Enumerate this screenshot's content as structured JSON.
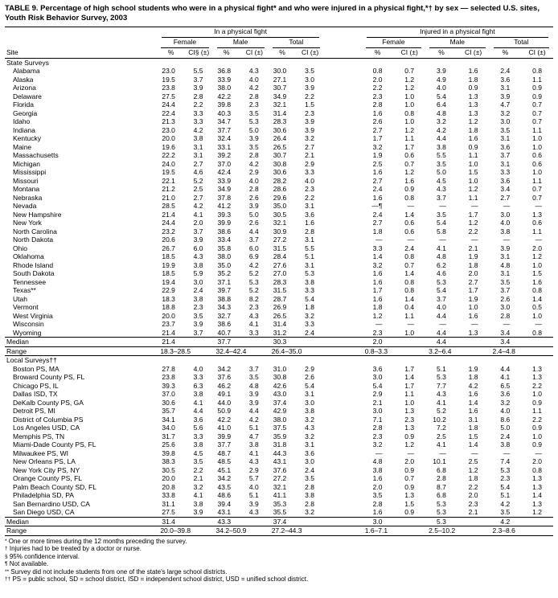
{
  "title": "TABLE 9. Percentage of high school students who were in a physical fight* and who were injured in a physical fight,*† by sex — selected U.S. sites, Youth Risk Behavior Survey, 2003",
  "header": {
    "site_label": "Site",
    "groups": [
      {
        "label": "In a physical fight"
      },
      {
        "label": "Injured in a physical fight"
      }
    ],
    "subgroups": [
      "Female",
      "Male",
      "Total"
    ],
    "pct_label": "%",
    "ci_label_first": "CI§ (±)",
    "ci_label": "CI (±)"
  },
  "sections": [
    {
      "label": "State Surveys",
      "rows": [
        {
          "site": "Alabama",
          "values": [
            "23.0",
            "5.5",
            "36.8",
            "4.3",
            "30.0",
            "3.5",
            "0.8",
            "0.7",
            "3.9",
            "1.6",
            "2.4",
            "0.8"
          ]
        },
        {
          "site": "Alaska",
          "values": [
            "19.5",
            "3.7",
            "33.9",
            "4.0",
            "27.1",
            "3.0",
            "2.0",
            "1.2",
            "4.9",
            "1.8",
            "3.6",
            "1.1"
          ]
        },
        {
          "site": "Arizona",
          "values": [
            "23.8",
            "3.9",
            "38.0",
            "4.2",
            "30.7",
            "3.9",
            "2.2",
            "1.2",
            "4.0",
            "0.9",
            "3.1",
            "0.9"
          ]
        },
        {
          "site": "Delaware",
          "values": [
            "27.5",
            "2.8",
            "42.2",
            "2.8",
            "34.9",
            "2.2",
            "2.3",
            "1.0",
            "5.4",
            "1.3",
            "3.9",
            "0.9"
          ]
        },
        {
          "site": "Florida",
          "values": [
            "24.4",
            "2.2",
            "39.8",
            "2.3",
            "32.1",
            "1.5",
            "2.8",
            "1.0",
            "6.4",
            "1.3",
            "4.7",
            "0.7"
          ]
        },
        {
          "site": "Georgia",
          "values": [
            "22.4",
            "3.3",
            "40.3",
            "3.5",
            "31.4",
            "2.3",
            "1.6",
            "0.8",
            "4.8",
            "1.3",
            "3.2",
            "0.7"
          ]
        },
        {
          "site": "Idaho",
          "values": [
            "21.3",
            "3.3",
            "34.7",
            "5.3",
            "28.3",
            "3.9",
            "2.6",
            "1.0",
            "3.2",
            "1.2",
            "3.0",
            "0.7"
          ]
        },
        {
          "site": "Indiana",
          "values": [
            "23.0",
            "4.2",
            "37.7",
            "5.0",
            "30.6",
            "3.9",
            "2.7",
            "1.2",
            "4.2",
            "1.8",
            "3.5",
            "1.1"
          ]
        },
        {
          "site": "Kentucky",
          "values": [
            "20.0",
            "3.8",
            "32.4",
            "3.9",
            "26.4",
            "3.2",
            "1.7",
            "1.1",
            "4.4",
            "1.6",
            "3.1",
            "1.0"
          ]
        },
        {
          "site": "Maine",
          "values": [
            "19.6",
            "3.1",
            "33.1",
            "3.5",
            "26.5",
            "2.7",
            "3.2",
            "1.7",
            "3.8",
            "0.9",
            "3.6",
            "1.0"
          ]
        },
        {
          "site": "Massachusetts",
          "values": [
            "22.2",
            "3.1",
            "39.2",
            "2.8",
            "30.7",
            "2.1",
            "1.9",
            "0.6",
            "5.5",
            "1.1",
            "3.7",
            "0.6"
          ]
        },
        {
          "site": "Michigan",
          "values": [
            "24.0",
            "2.7",
            "37.0",
            "4.2",
            "30.8",
            "2.9",
            "2.5",
            "0.7",
            "3.5",
            "1.0",
            "3.1",
            "0.6"
          ]
        },
        {
          "site": "Mississippi",
          "values": [
            "19.5",
            "4.6",
            "42.4",
            "2.9",
            "30.6",
            "3.3",
            "1.6",
            "1.2",
            "5.0",
            "1.5",
            "3.3",
            "1.0"
          ]
        },
        {
          "site": "Missouri",
          "values": [
            "22.1",
            "5.2",
            "33.9",
            "4.0",
            "28.2",
            "4.0",
            "2.7",
            "1.6",
            "4.5",
            "1.0",
            "3.6",
            "1.1"
          ]
        },
        {
          "site": "Montana",
          "values": [
            "21.2",
            "2.5",
            "34.9",
            "2.8",
            "28.6",
            "2.3",
            "2.4",
            "0.9",
            "4.3",
            "1.2",
            "3.4",
            "0.7"
          ]
        },
        {
          "site": "Nebraska",
          "values": [
            "21.0",
            "2.7",
            "37.8",
            "2.6",
            "29.6",
            "2.2",
            "1.6",
            "0.8",
            "3.7",
            "1.1",
            "2.7",
            "0.7"
          ]
        },
        {
          "site": "Nevada",
          "values": [
            "28.5",
            "4.2",
            "41.2",
            "3.9",
            "35.0",
            "3.1",
            "—¶",
            "—",
            "—",
            "—",
            "—",
            "—"
          ]
        },
        {
          "site": "New Hampshire",
          "values": [
            "21.4",
            "4.1",
            "39.3",
            "5.0",
            "30.5",
            "3.6",
            "2.4",
            "1.4",
            "3.5",
            "1.7",
            "3.0",
            "1.3"
          ]
        },
        {
          "site": "New York",
          "values": [
            "24.4",
            "2.0",
            "39.9",
            "2.6",
            "32.1",
            "1.6",
            "2.7",
            "0.6",
            "5.4",
            "1.2",
            "4.0",
            "0.6"
          ]
        },
        {
          "site": "North Carolina",
          "values": [
            "23.2",
            "3.7",
            "38.6",
            "4.4",
            "30.9",
            "2.8",
            "1.8",
            "0.6",
            "5.8",
            "2.2",
            "3.8",
            "1.1"
          ]
        },
        {
          "site": "North Dakota",
          "values": [
            "20.6",
            "3.9",
            "33.4",
            "3.7",
            "27.2",
            "3.1",
            "—",
            "—",
            "—",
            "—",
            "—",
            "—"
          ]
        },
        {
          "site": "Ohio",
          "values": [
            "26.7",
            "6.0",
            "35.8",
            "6.0",
            "31.5",
            "5.5",
            "3.3",
            "2.4",
            "4.1",
            "2.1",
            "3.9",
            "2.0"
          ]
        },
        {
          "site": "Oklahoma",
          "values": [
            "18.5",
            "4.3",
            "38.0",
            "6.9",
            "28.4",
            "5.1",
            "1.4",
            "0.8",
            "4.8",
            "1.9",
            "3.1",
            "1.2"
          ]
        },
        {
          "site": "Rhode Island",
          "values": [
            "19.9",
            "3.8",
            "35.0",
            "4.2",
            "27.6",
            "3.1",
            "3.2",
            "0.7",
            "6.2",
            "1.8",
            "4.8",
            "1.0"
          ]
        },
        {
          "site": "South Dakota",
          "values": [
            "18.5",
            "5.9",
            "35.2",
            "5.2",
            "27.0",
            "5.3",
            "1.6",
            "1.4",
            "4.6",
            "2.0",
            "3.1",
            "1.5"
          ]
        },
        {
          "site": "Tennessee",
          "values": [
            "19.4",
            "3.0",
            "37.1",
            "5.3",
            "28.3",
            "3.8",
            "1.6",
            "0.8",
            "5.3",
            "2.7",
            "3.5",
            "1.6"
          ]
        },
        {
          "site": "Texas**",
          "values": [
            "22.9",
            "2.4",
            "39.7",
            "5.2",
            "31.5",
            "3.3",
            "1.7",
            "0.8",
            "5.4",
            "1.7",
            "3.7",
            "0.8"
          ]
        },
        {
          "site": "Utah",
          "values": [
            "18.3",
            "3.8",
            "38.8",
            "8.2",
            "28.7",
            "5.4",
            "1.6",
            "1.4",
            "3.7",
            "1.9",
            "2.6",
            "1.4"
          ]
        },
        {
          "site": "Vermont",
          "values": [
            "18.8",
            "2.3",
            "34.3",
            "2.3",
            "26.9",
            "1.8",
            "1.8",
            "0.4",
            "4.0",
            "1.0",
            "3.0",
            "0.5"
          ]
        },
        {
          "site": "West Virginia",
          "values": [
            "20.0",
            "3.5",
            "32.7",
            "4.3",
            "26.5",
            "3.2",
            "1.2",
            "1.1",
            "4.4",
            "1.6",
            "2.8",
            "1.0"
          ]
        },
        {
          "site": "Wisconsin",
          "values": [
            "23.7",
            "3.9",
            "38.6",
            "4.1",
            "31.4",
            "3.3",
            "—",
            "—",
            "—",
            "—",
            "—",
            "—"
          ]
        },
        {
          "site": "Wyoming",
          "values": [
            "21.4",
            "3.7",
            "40.7",
            "3.3",
            "31.2",
            "2.4",
            "2.3",
            "1.0",
            "4.4",
            "1.3",
            "3.4",
            "0.8"
          ]
        }
      ],
      "median": {
        "label": "Median",
        "values": [
          "21.4",
          "37.7",
          "30.3",
          "2.0",
          "4.4",
          "3.4"
        ]
      },
      "range": {
        "label": "Range",
        "values": [
          "18.3–28.5",
          "32.4–42.4",
          "26.4–35.0",
          "0.8–3.3",
          "3.2–6.4",
          "2.4–4.8"
        ]
      }
    },
    {
      "label": "Local Surveys††",
      "rows": [
        {
          "site": "Boston PS, MA",
          "values": [
            "27.8",
            "4.0",
            "34.2",
            "3.7",
            "31.0",
            "2.9",
            "3.6",
            "1.7",
            "5.1",
            "1.9",
            "4.4",
            "1.3"
          ]
        },
        {
          "site": "Broward County PS, FL",
          "values": [
            "23.8",
            "3.3",
            "37.6",
            "3.5",
            "30.8",
            "2.6",
            "3.0",
            "1.4",
            "5.3",
            "1.8",
            "4.1",
            "1.3"
          ]
        },
        {
          "site": "Chicago PS, IL",
          "values": [
            "39.3",
            "6.3",
            "46.2",
            "4.8",
            "42.6",
            "5.4",
            "5.4",
            "1.7",
            "7.7",
            "4.2",
            "6.5",
            "2.2"
          ]
        },
        {
          "site": "Dallas ISD, TX",
          "values": [
            "37.0",
            "3.8",
            "49.1",
            "3.9",
            "43.0",
            "3.1",
            "2.9",
            "1.1",
            "4.3",
            "1.6",
            "3.6",
            "1.0"
          ]
        },
        {
          "site": "DeKalb County PS, GA",
          "values": [
            "30.6",
            "4.1",
            "44.0",
            "3.9",
            "37.4",
            "3.0",
            "2.1",
            "1.0",
            "4.1",
            "1.4",
            "3.2",
            "0.9"
          ]
        },
        {
          "site": "Detroit PS, MI",
          "values": [
            "35.7",
            "4.4",
            "50.9",
            "4.4",
            "42.9",
            "3.8",
            "3.0",
            "1.3",
            "5.2",
            "1.6",
            "4.0",
            "1.1"
          ]
        },
        {
          "site": "District of Columbia PS",
          "values": [
            "34.1",
            "3.6",
            "42.2",
            "4.2",
            "38.0",
            "3.2",
            "7.1",
            "2.3",
            "10.2",
            "3.1",
            "8.6",
            "2.2"
          ]
        },
        {
          "site": "Los Angeles USD, CA",
          "values": [
            "34.0",
            "5.6",
            "41.0",
            "5.1",
            "37.5",
            "4.3",
            "2.8",
            "1.3",
            "7.2",
            "1.8",
            "5.0",
            "0.9"
          ]
        },
        {
          "site": "Memphis PS, TN",
          "values": [
            "31.7",
            "3.3",
            "39.9",
            "4.7",
            "35.9",
            "3.2",
            "2.3",
            "0.9",
            "2.5",
            "1.5",
            "2.4",
            "1.0"
          ]
        },
        {
          "site": "Miami-Dade County PS, FL",
          "values": [
            "25.6",
            "3.8",
            "37.7",
            "3.8",
            "31.8",
            "3.1",
            "3.2",
            "1.2",
            "4.1",
            "1.4",
            "3.8",
            "0.9"
          ]
        },
        {
          "site": "Milwaukee PS, WI",
          "values": [
            "39.8",
            "4.5",
            "48.7",
            "4.1",
            "44.3",
            "3.6",
            "—",
            "—",
            "—",
            "—",
            "—",
            "—"
          ]
        },
        {
          "site": "New Orleans PS, LA",
          "values": [
            "38.3",
            "3.5",
            "48.5",
            "4.3",
            "43.1",
            "3.0",
            "4.8",
            "2.0",
            "10.1",
            "2.5",
            "7.4",
            "2.0"
          ]
        },
        {
          "site": "New York City PS, NY",
          "values": [
            "30.5",
            "2.2",
            "45.1",
            "2.9",
            "37.6",
            "2.4",
            "3.8",
            "0.9",
            "6.8",
            "1.2",
            "5.3",
            "0.8"
          ]
        },
        {
          "site": "Orange County PS, FL",
          "values": [
            "20.0",
            "2.1",
            "34.2",
            "5.7",
            "27.2",
            "3.5",
            "1.6",
            "0.7",
            "2.8",
            "1.8",
            "2.3",
            "1.3"
          ]
        },
        {
          "site": "Palm Beach County SD, FL",
          "values": [
            "20.8",
            "3.2",
            "43.5",
            "4.0",
            "32.1",
            "2.8",
            "2.0",
            "0.9",
            "8.7",
            "2.2",
            "5.4",
            "1.3"
          ]
        },
        {
          "site": "Philadelphia SD, PA",
          "values": [
            "33.8",
            "4.1",
            "48.6",
            "5.1",
            "41.1",
            "3.8",
            "3.5",
            "1.3",
            "6.8",
            "2.0",
            "5.1",
            "1.4"
          ]
        },
        {
          "site": "San Bernardino USD, CA",
          "values": [
            "31.1",
            "3.8",
            "39.4",
            "3.9",
            "35.3",
            "2.8",
            "2.8",
            "1.5",
            "5.3",
            "2.3",
            "4.2",
            "1.3"
          ]
        },
        {
          "site": "San Diego USD, CA",
          "values": [
            "27.5",
            "3.9",
            "43.1",
            "4.3",
            "35.5",
            "3.2",
            "1.6",
            "0.9",
            "5.3",
            "2.1",
            "3.5",
            "1.2"
          ]
        }
      ],
      "median": {
        "label": "Median",
        "values": [
          "31.4",
          "43.3",
          "37.4",
          "3.0",
          "5.3",
          "4.2"
        ]
      },
      "range": {
        "label": "Range",
        "values": [
          "20.0–39.8",
          "34.2–50.9",
          "27.2–44.3",
          "1.6–7.1",
          "2.5–10.2",
          "2.3–8.6"
        ]
      }
    }
  ],
  "footnotes": [
    {
      "marker": "*",
      "text": "One or more times during the 12 months preceding the survey."
    },
    {
      "marker": "†",
      "text": "Injuries had to be treated by a doctor or nurse."
    },
    {
      "marker": "§",
      "text": "95% confidence interval."
    },
    {
      "marker": "¶",
      "text": "Not available."
    },
    {
      "marker": "**",
      "text": "Survey did not include students from one of the state's large school districts."
    },
    {
      "marker": "††",
      "text": "PS = public school, SD = school district, ISD = independent school district, USD = unified school district."
    }
  ]
}
